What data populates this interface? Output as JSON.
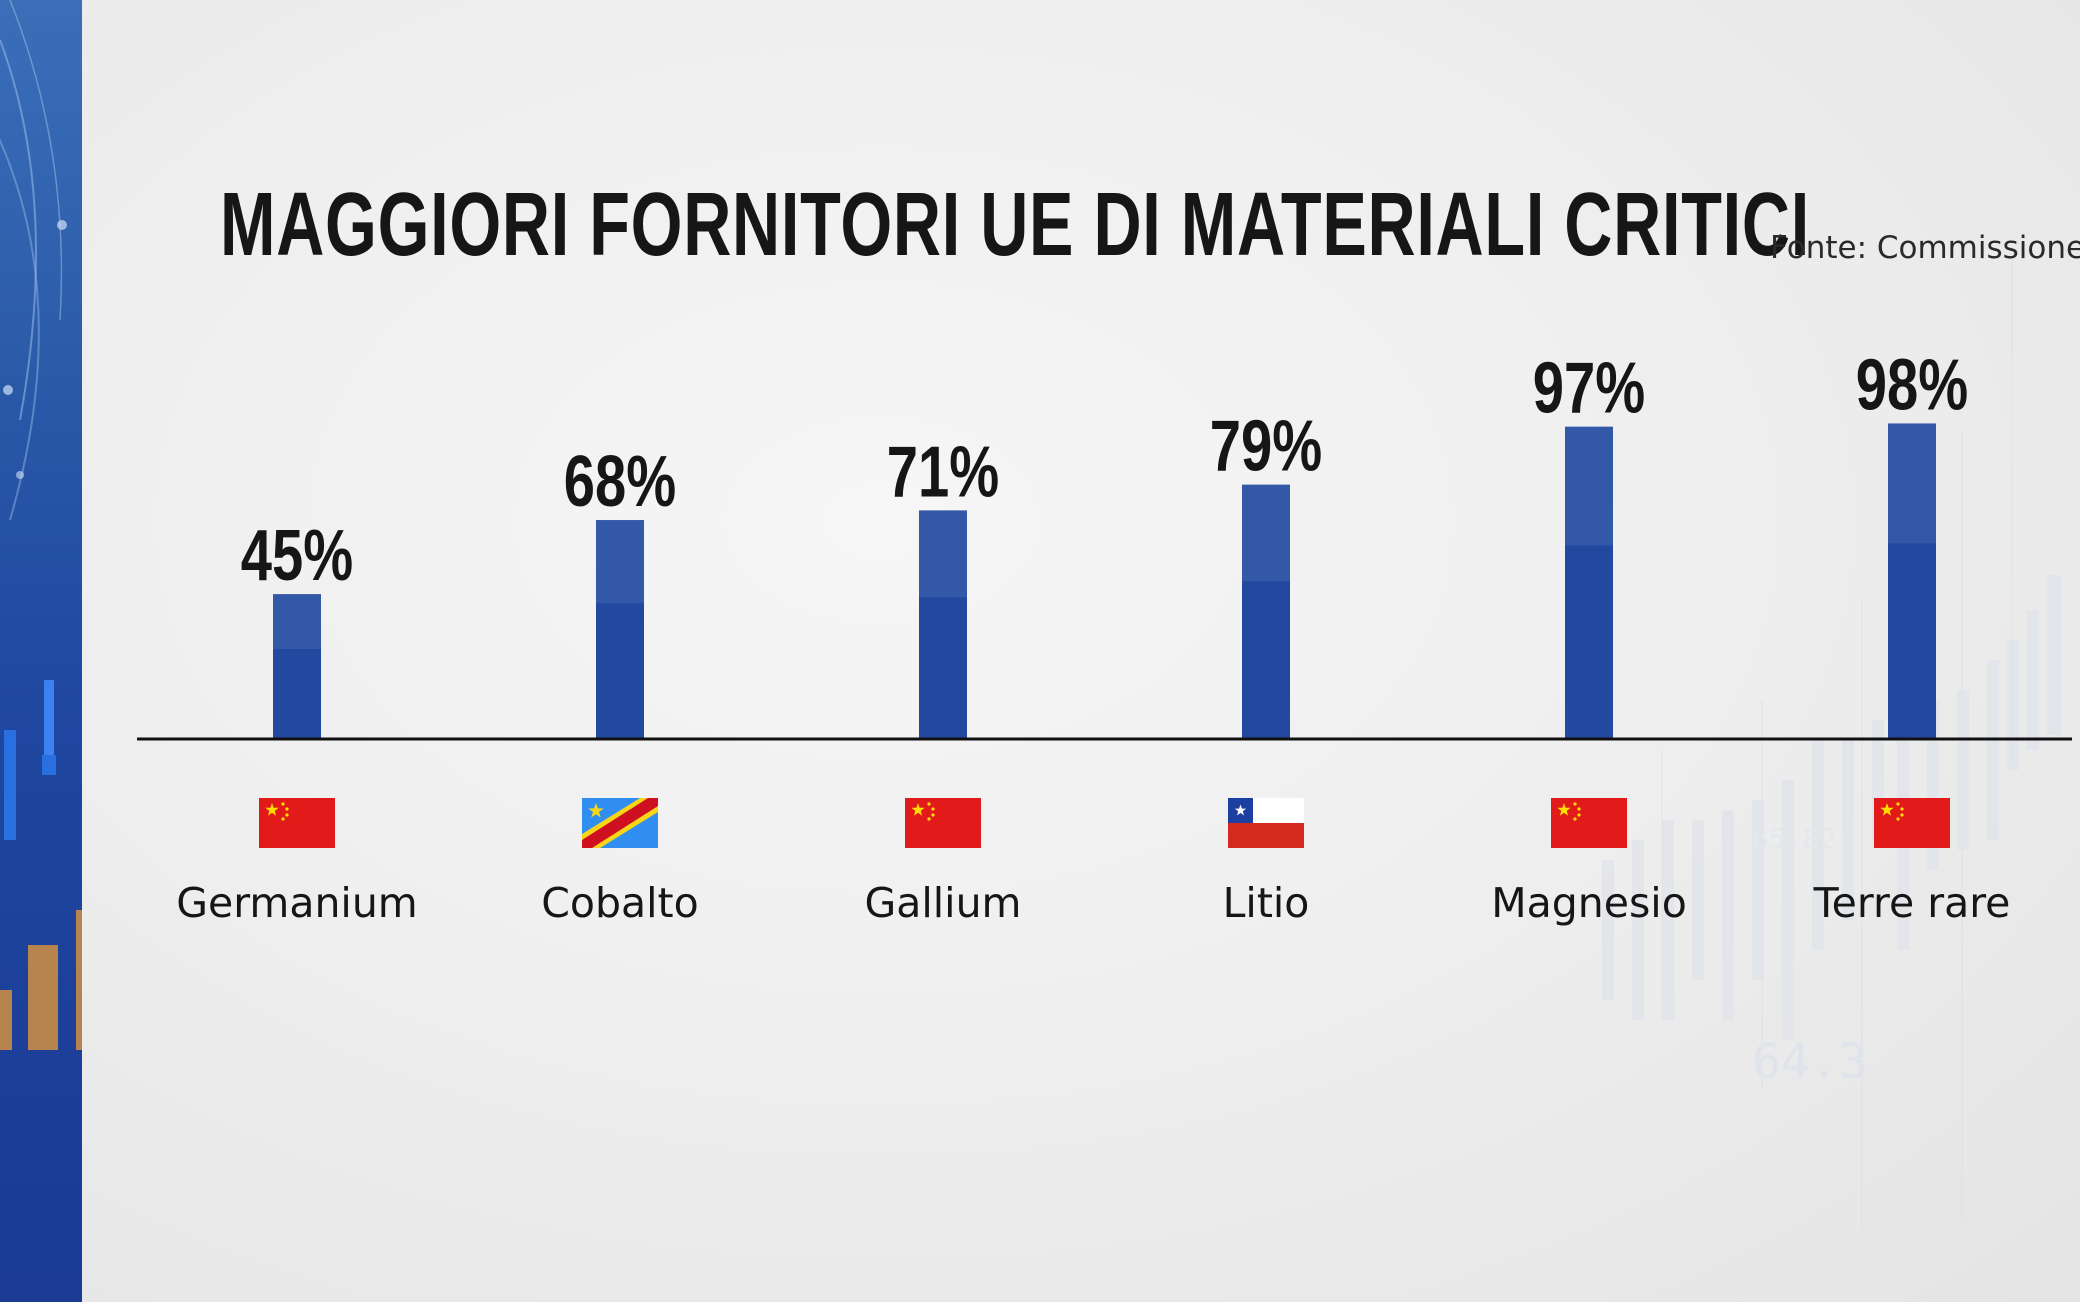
{
  "chart_data": {
    "type": "bar",
    "title": "MAGGIORI FORNITORI UE DI MATERIALI CRITICI",
    "source": "Fonte: Commissione Ue",
    "categories": [
      "Germanium",
      "Cobalto",
      "Gallium",
      "Litio",
      "Magnesio",
      "Terre rare"
    ],
    "values": [
      45,
      68,
      71,
      79,
      97,
      98
    ],
    "value_labels": [
      "45%",
      "68%",
      "71%",
      "79%",
      "97%",
      "98%"
    ],
    "flags": [
      "china-flag-icon",
      "dr-congo-flag-icon",
      "china-flag-icon",
      "chile-flag-icon",
      "china-flag-icon",
      "china-flag-icon"
    ],
    "unit": "%",
    "ylim": [
      0,
      100
    ],
    "grid": false,
    "colors": {
      "bar_top": "#3358a8",
      "bar_bottom": "#22489f",
      "axis": "#111111",
      "text": "#161616",
      "china_red": "#e21a1a",
      "star_yellow": "#ffde00",
      "congo_blue": "#2f8ef0",
      "chile_blue": "#1d3fa0"
    }
  }
}
